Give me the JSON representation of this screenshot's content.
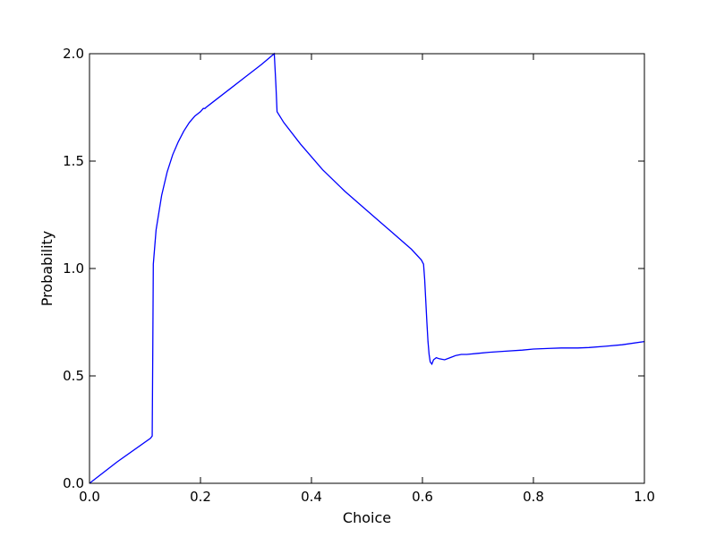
{
  "chart_data": {
    "type": "line",
    "title": "",
    "xlabel": "Choice",
    "ylabel": "Probability",
    "xlim": [
      0.0,
      1.0
    ],
    "ylim": [
      0.0,
      2.0
    ],
    "x_ticks": [
      0.0,
      0.2,
      0.4,
      0.6,
      0.8,
      1.0
    ],
    "x_tick_labels": [
      "0.0",
      "0.2",
      "0.4",
      "0.6",
      "0.8",
      "1.0"
    ],
    "y_ticks": [
      0.0,
      0.5,
      1.0,
      1.5,
      2.0
    ],
    "y_tick_labels": [
      "0.0",
      "0.5",
      "1.0",
      "1.5",
      "2.0"
    ],
    "grid": false,
    "legend": "none",
    "series": [
      {
        "color": "#0000ff",
        "x": [
          0.0,
          0.05,
          0.11,
          0.113,
          0.114,
          0.115,
          0.12,
          0.13,
          0.14,
          0.15,
          0.16,
          0.17,
          0.18,
          0.19,
          0.2,
          0.205,
          0.208,
          0.21,
          0.22,
          0.25,
          0.28,
          0.31,
          0.333,
          0.334,
          0.336,
          0.338,
          0.35,
          0.38,
          0.42,
          0.46,
          0.5,
          0.54,
          0.58,
          0.598,
          0.602,
          0.604,
          0.606,
          0.608,
          0.61,
          0.612,
          0.614,
          0.617,
          0.62,
          0.625,
          0.63,
          0.64,
          0.65,
          0.66,
          0.67,
          0.68,
          0.7,
          0.72,
          0.75,
          0.78,
          0.8,
          0.83,
          0.85,
          0.88,
          0.9,
          0.93,
          0.96,
          1.0
        ],
        "y": [
          0.0,
          0.1,
          0.21,
          0.22,
          0.6,
          1.02,
          1.18,
          1.34,
          1.45,
          1.53,
          1.59,
          1.64,
          1.68,
          1.71,
          1.73,
          1.745,
          1.745,
          1.75,
          1.77,
          1.83,
          1.89,
          1.95,
          2.0,
          1.95,
          1.85,
          1.73,
          1.68,
          1.58,
          1.46,
          1.36,
          1.27,
          1.18,
          1.09,
          1.04,
          1.02,
          0.95,
          0.85,
          0.75,
          0.66,
          0.6,
          0.565,
          0.555,
          0.575,
          0.585,
          0.58,
          0.575,
          0.585,
          0.595,
          0.6,
          0.6,
          0.605,
          0.61,
          0.615,
          0.62,
          0.625,
          0.628,
          0.63,
          0.63,
          0.632,
          0.638,
          0.645,
          0.66
        ]
      }
    ]
  }
}
